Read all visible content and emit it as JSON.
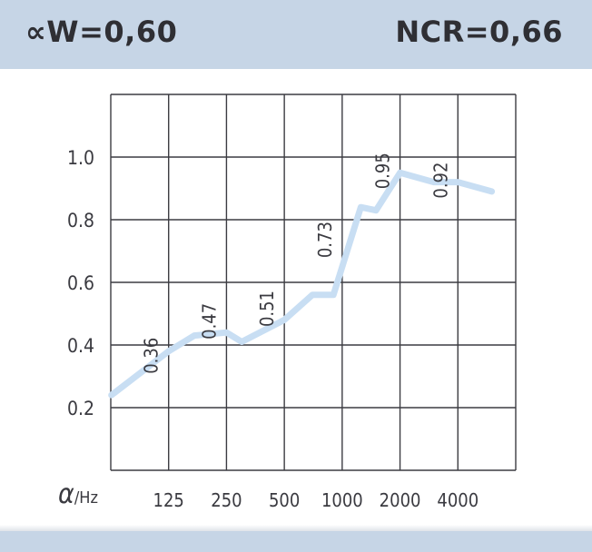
{
  "header": {
    "left_label": "∝W=0,60",
    "right_label": "NCR=0,66"
  },
  "colors": {
    "band": "#c6d5e6",
    "grid": "#3c3c42",
    "curve": "#c8def3",
    "text": "#3a3a40"
  },
  "chart_data": {
    "type": "line",
    "title": "",
    "xlabel": "α/Hz",
    "ylabel": "",
    "x_scale": "log2",
    "xlim": [
      62.5,
      8000
    ],
    "ylim": [
      0.0,
      1.2
    ],
    "grid": true,
    "categories": [
      "125",
      "250",
      "500",
      "1000",
      "2000",
      "4000"
    ],
    "y_ticks": [
      "0.2",
      "0.4",
      "0.6",
      "0.8",
      "1.0"
    ],
    "series": [
      {
        "name": "",
        "points": [
          {
            "x": 63,
            "y": 0.24
          },
          {
            "x": 125,
            "y": 0.38
          },
          {
            "x": 170,
            "y": 0.43
          },
          {
            "x": 250,
            "y": 0.44
          },
          {
            "x": 300,
            "y": 0.41
          },
          {
            "x": 500,
            "y": 0.48
          },
          {
            "x": 700,
            "y": 0.56
          },
          {
            "x": 900,
            "y": 0.56
          },
          {
            "x": 1250,
            "y": 0.84
          },
          {
            "x": 1500,
            "y": 0.83
          },
          {
            "x": 2000,
            "y": 0.95
          },
          {
            "x": 3000,
            "y": 0.92
          },
          {
            "x": 4000,
            "y": 0.92
          },
          {
            "x": 6000,
            "y": 0.89
          }
        ]
      }
    ],
    "annotations": [
      {
        "text": "0.36",
        "x": 125,
        "y": 0.36
      },
      {
        "text": "0.47",
        "x": 250,
        "y": 0.47
      },
      {
        "text": "0.51",
        "x": 500,
        "y": 0.51
      },
      {
        "text": "0.73",
        "x": 1000,
        "y": 0.73
      },
      {
        "text": "0.95",
        "x": 2000,
        "y": 0.95
      },
      {
        "text": "0.92",
        "x": 4000,
        "y": 0.92
      }
    ]
  }
}
